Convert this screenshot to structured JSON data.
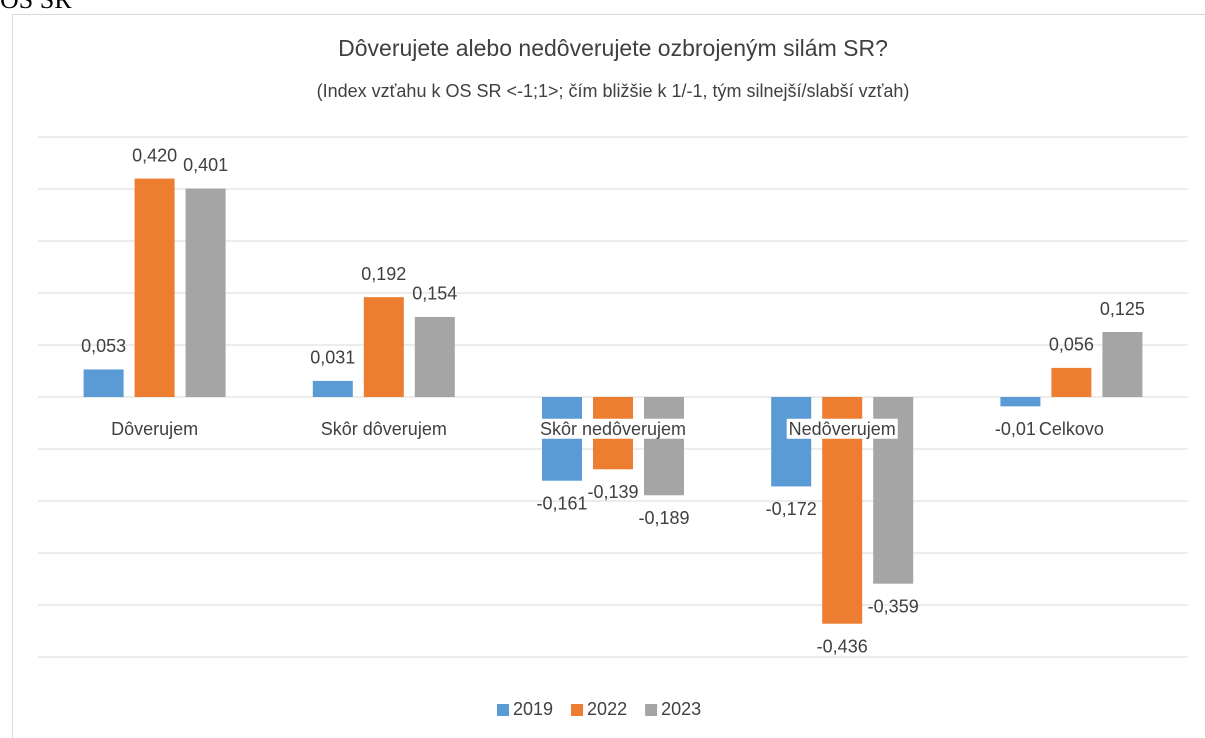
{
  "header": "OS SR",
  "chart_data": {
    "type": "bar",
    "title": "Dôverujete alebo nedôverujete ozbrojeným silám SR?",
    "subtitle": "(Index vzťahu k OS SR <-1;1>; čím bližšie k 1/-1, tým silnejší/slabší vzťah)",
    "categories": [
      "Dôverujem",
      "Skôr dôverujem",
      "Skôr nedôverujem",
      "Nedôverujem",
      "Celkovo"
    ],
    "series": [
      {
        "name": "2019",
        "color": "#5b9bd5",
        "values": [
          0.053,
          0.031,
          -0.161,
          -0.172,
          -0.018
        ],
        "value_labels": [
          "0,053",
          "0,031",
          "-0,161",
          "-0,172",
          "-0,018"
        ]
      },
      {
        "name": "2022",
        "color": "#ed7d31",
        "values": [
          0.42,
          0.192,
          -0.139,
          -0.436,
          0.056
        ],
        "value_labels": [
          "0,420",
          "0,192",
          "-0,139",
          "-0,436",
          "0,056"
        ]
      },
      {
        "name": "2023",
        "color": "#a5a5a5",
        "values": [
          0.401,
          0.154,
          -0.189,
          -0.359,
          0.125
        ],
        "value_labels": [
          "0,401",
          "0,154",
          "-0,189",
          "-0,359",
          "0,125"
        ]
      }
    ],
    "ylim": [
      -0.5,
      0.5
    ],
    "yticks": [
      -0.5,
      -0.4,
      -0.3,
      -0.2,
      -0.1,
      0,
      0.1,
      0.2,
      0.3,
      0.4,
      0.5
    ],
    "grid": true,
    "legend": "bottom"
  }
}
